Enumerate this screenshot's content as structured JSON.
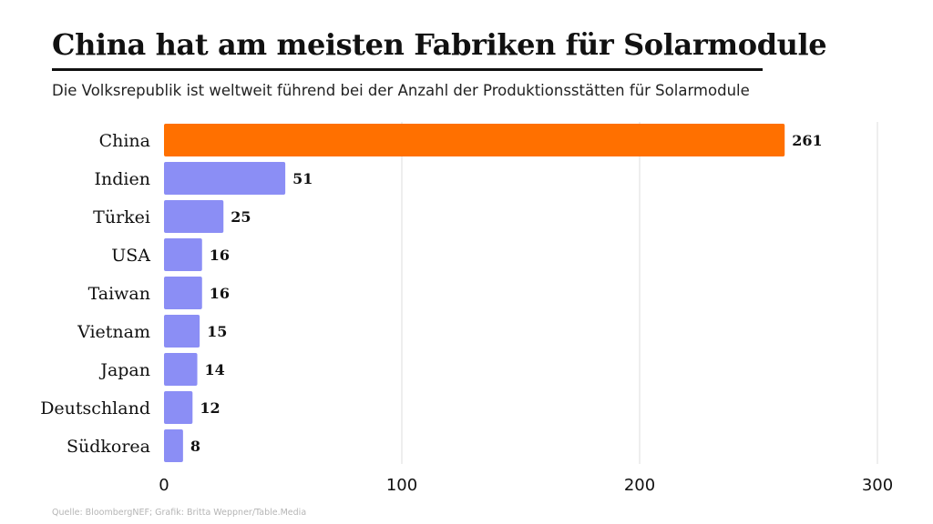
{
  "header": {
    "title": "China hat am meisten Fabriken für Solarmodule",
    "subtitle": "Die Volksrepublik ist weltweit führend bei der Anzahl der Produktionsstätten für Solarmodule"
  },
  "footer": {
    "source": "Quelle: BloombergNEF; Grafik: Britta Weppner/Table.Media"
  },
  "colors": {
    "highlight": "#ff7000",
    "default": "#8b8ef5",
    "grid": "#dcdcdc"
  },
  "chart_data": {
    "type": "bar",
    "orientation": "horizontal",
    "categories": [
      "China",
      "Indien",
      "Türkei",
      "USA",
      "Taiwan",
      "Vietnam",
      "Japan",
      "Deutschland",
      "Südkorea"
    ],
    "values": [
      261,
      51,
      25,
      16,
      16,
      15,
      14,
      12,
      8
    ],
    "highlight_category": "China",
    "xlim": [
      0,
      300
    ],
    "xticks": [
      0,
      100,
      200,
      300
    ],
    "grid": true,
    "data_labels": true,
    "title": "China hat am meisten Fabriken für Solarmodule",
    "xlabel": "",
    "ylabel": ""
  }
}
